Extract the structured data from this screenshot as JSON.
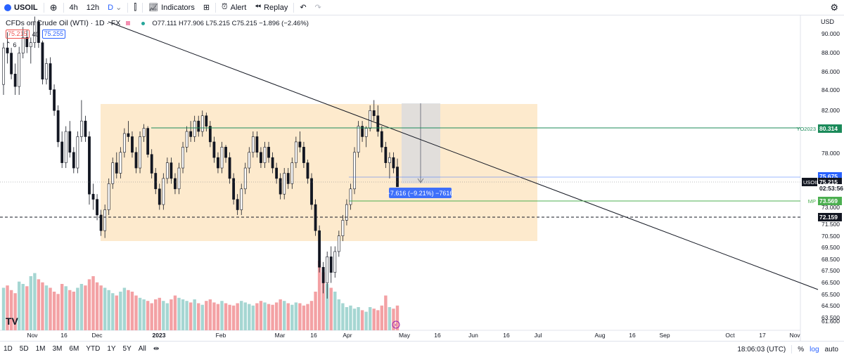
{
  "toolbar": {
    "symbol": "USOIL",
    "intervals": [
      "4h",
      "12h",
      "D"
    ],
    "indicators_label": "Indicators",
    "alert_label": "Alert",
    "replay_label": "Replay"
  },
  "legend": {
    "title": "CFDs on Crude Oil (WTI) · 1D · FX",
    "open": "O77.111",
    "high": "H77.906",
    "low": "L75.215",
    "close": "C75.215",
    "change": "−1.896 (−2.46%)",
    "bid": "75.215",
    "spread": "40",
    "ask": "75.255",
    "count": "6"
  },
  "bottombar": {
    "ranges": [
      "1D",
      "5D",
      "1M",
      "3M",
      "6M",
      "YTD",
      "1Y",
      "5Y",
      "All"
    ],
    "time": "18:06:03 (UTC)",
    "percent": "%",
    "log": "log",
    "auto": "auto"
  },
  "colors": {
    "up": "#26a69a",
    "down": "#ef5350",
    "volUp": "#a5d6d2",
    "volDown": "#f3a1a4",
    "zone": "#fde8c8",
    "accent": "#2962ff",
    "green": "#1b8a5a"
  },
  "chart_data": {
    "type": "candlestick",
    "currency": "USD",
    "y_ticks": [
      "90.000",
      "88.000",
      "86.000",
      "84.000",
      "82.000",
      "80.000",
      "78.000",
      "75.675",
      "73.000",
      "71.500",
      "70.500",
      "69.500",
      "68.500",
      "67.500",
      "66.500",
      "65.500",
      "64.500",
      "63.500",
      "61.600"
    ],
    "x_ticks": [
      "Nov",
      "16",
      "Dec",
      "2023",
      "Feb",
      "Mar",
      "16",
      "Apr",
      "May",
      "16",
      "Jun",
      "16",
      "Jul",
      "Aug",
      "16",
      "Sep",
      "Oct",
      "17",
      "Nov"
    ],
    "price_labels": [
      {
        "value": "80.314",
        "label": "YO2023",
        "color": "#1b8a5a"
      },
      {
        "value": "75.675",
        "label": "",
        "color": "#2962ff"
      },
      {
        "value": "75.215",
        "label": "USOIL",
        "color": "#131722"
      },
      {
        "value": "02:53:56",
        "label": "",
        "color": "#131722"
      },
      {
        "value": "73.569",
        "label": "MP",
        "color": "#4caf50"
      },
      {
        "value": "72.159",
        "label": "",
        "color": "#131722"
      }
    ],
    "measure_label": "−7.616 (−9.21%) −7616",
    "candles": [
      [
        85.0,
        89.0,
        84.0,
        88.5
      ],
      [
        88.5,
        90.0,
        87.0,
        88.0
      ],
      [
        88.0,
        88.5,
        85.5,
        86.0
      ],
      [
        86.0,
        87.0,
        84.0,
        84.8
      ],
      [
        84.8,
        88.6,
        84.0,
        88.0
      ],
      [
        88.0,
        90.5,
        87.5,
        89.5
      ],
      [
        89.5,
        90.2,
        88.0,
        88.6
      ],
      [
        88.6,
        89.5,
        87.0,
        89.0
      ],
      [
        89.0,
        91.5,
        88.5,
        91.0
      ],
      [
        91.0,
        91.2,
        88.5,
        89.0
      ],
      [
        89.0,
        89.2,
        85.0,
        85.5
      ],
      [
        85.5,
        87.5,
        85.0,
        87.0
      ],
      [
        87.0,
        87.6,
        84.0,
        84.5
      ],
      [
        84.5,
        85.0,
        82.0,
        82.5
      ],
      [
        82.5,
        83.0,
        79.0,
        79.5
      ],
      [
        79.5,
        80.5,
        77.0,
        77.5
      ],
      [
        77.5,
        81.0,
        77.0,
        80.5
      ],
      [
        80.5,
        81.5,
        78.0,
        78.5
      ],
      [
        78.5,
        79.0,
        76.5,
        77.0
      ],
      [
        77.0,
        80.5,
        76.5,
        80.0
      ],
      [
        80.0,
        83.5,
        79.5,
        81.5
      ],
      [
        81.5,
        82.0,
        79.5,
        80.0
      ],
      [
        80.0,
        80.5,
        73.5,
        74.5
      ],
      [
        74.5,
        75.5,
        73.0,
        74.0
      ],
      [
        74.0,
        74.5,
        72.0,
        72.5
      ],
      [
        72.5,
        73.0,
        70.5,
        71.0
      ],
      [
        71.0,
        73.5,
        70.3,
        73.0
      ],
      [
        73.0,
        76.0,
        72.5,
        75.5
      ],
      [
        75.5,
        78.0,
        75.0,
        77.5
      ],
      [
        77.5,
        78.5,
        76.0,
        76.5
      ],
      [
        76.5,
        79.0,
        76.0,
        78.5
      ],
      [
        78.5,
        80.8,
        78.0,
        80.3
      ],
      [
        80.3,
        81.5,
        79.5,
        80.0
      ],
      [
        80.0,
        80.5,
        78.0,
        78.5
      ],
      [
        78.5,
        79.0,
        76.5,
        77.0
      ],
      [
        77.0,
        80.5,
        76.5,
        80.0
      ],
      [
        80.0,
        81.2,
        79.5,
        80.8
      ],
      [
        80.8,
        81.0,
        78.0,
        78.3
      ],
      [
        78.3,
        78.8,
        76.0,
        76.5
      ],
      [
        76.5,
        77.0,
        74.5,
        75.0
      ],
      [
        75.0,
        75.5,
        73.0,
        73.5
      ],
      [
        73.5,
        76.5,
        73.0,
        76.0
      ],
      [
        76.0,
        78.0,
        75.5,
        77.5
      ],
      [
        77.5,
        78.0,
        75.5,
        76.0
      ],
      [
        76.0,
        76.5,
        74.5,
        75.0
      ],
      [
        75.0,
        77.5,
        74.5,
        77.0
      ],
      [
        77.0,
        79.5,
        76.5,
        79.0
      ],
      [
        79.0,
        81.0,
        78.5,
        80.5
      ],
      [
        80.5,
        81.5,
        79.5,
        80.0
      ],
      [
        80.0,
        82.0,
        79.5,
        81.5
      ],
      [
        81.5,
        82.0,
        80.0,
        80.5
      ],
      [
        80.5,
        82.5,
        80.0,
        82.0
      ],
      [
        82.0,
        82.3,
        80.5,
        81.0
      ],
      [
        81.0,
        81.5,
        79.0,
        79.5
      ],
      [
        79.5,
        80.0,
        77.5,
        78.0
      ],
      [
        78.0,
        78.5,
        76.5,
        77.0
      ],
      [
        77.0,
        79.5,
        76.5,
        79.0
      ],
      [
        79.0,
        79.2,
        77.5,
        78.0
      ],
      [
        78.0,
        78.5,
        75.5,
        76.0
      ],
      [
        76.0,
        76.5,
        73.5,
        74.0
      ],
      [
        74.0,
        74.5,
        72.5,
        73.0
      ],
      [
        73.0,
        75.5,
        72.5,
        75.0
      ],
      [
        75.0,
        77.5,
        74.5,
        77.0
      ],
      [
        77.0,
        79.0,
        76.5,
        78.5
      ],
      [
        78.5,
        80.5,
        78.0,
        80.0
      ],
      [
        80.0,
        80.5,
        78.0,
        78.5
      ],
      [
        78.5,
        79.0,
        77.0,
        77.5
      ],
      [
        77.5,
        79.5,
        77.0,
        79.0
      ],
      [
        79.0,
        79.5,
        77.5,
        78.0
      ],
      [
        78.0,
        78.5,
        76.5,
        77.0
      ],
      [
        77.0,
        77.5,
        75.5,
        76.0
      ],
      [
        76.0,
        76.5,
        74.0,
        74.5
      ],
      [
        74.5,
        77.0,
        74.0,
        76.5
      ],
      [
        76.5,
        77.0,
        75.0,
        75.5
      ],
      [
        75.5,
        78.0,
        75.0,
        77.5
      ],
      [
        77.5,
        80.0,
        77.0,
        79.5
      ],
      [
        79.5,
        80.5,
        78.5,
        79.0
      ],
      [
        79.0,
        79.5,
        77.0,
        77.5
      ],
      [
        77.5,
        77.8,
        75.5,
        76.0
      ],
      [
        76.0,
        76.5,
        73.0,
        73.5
      ],
      [
        73.5,
        74.0,
        70.5,
        71.0
      ],
      [
        71.0,
        71.5,
        67.0,
        67.5
      ],
      [
        67.5,
        68.0,
        65.0,
        66.0
      ],
      [
        66.0,
        69.0,
        64.5,
        68.5
      ],
      [
        68.5,
        69.5,
        66.0,
        67.0
      ],
      [
        67.0,
        69.5,
        66.5,
        69.0
      ],
      [
        69.0,
        71.0,
        68.5,
        70.5
      ],
      [
        70.5,
        72.5,
        70.0,
        72.0
      ],
      [
        72.0,
        74.0,
        71.5,
        73.5
      ],
      [
        73.5,
        75.5,
        73.0,
        75.0
      ],
      [
        75.0,
        79.0,
        74.5,
        78.5
      ],
      [
        78.5,
        81.5,
        78.0,
        81.0
      ],
      [
        81.0,
        81.5,
        79.5,
        80.0
      ],
      [
        80.0,
        81.0,
        79.0,
        80.8
      ],
      [
        80.8,
        83.0,
        80.5,
        82.5
      ],
      [
        82.5,
        83.5,
        81.5,
        82.0
      ],
      [
        82.0,
        83.0,
        80.0,
        80.5
      ],
      [
        80.5,
        81.0,
        78.5,
        79.0
      ],
      [
        79.0,
        79.5,
        77.0,
        77.5
      ],
      [
        77.5,
        78.5,
        76.0,
        78.0
      ],
      [
        78.0,
        78.5,
        76.5,
        77.0
      ],
      [
        77.1,
        77.9,
        75.2,
        75.2
      ]
    ],
    "volumes": [
      0.55,
      0.58,
      0.52,
      0.48,
      0.63,
      0.6,
      0.57,
      0.7,
      0.74,
      0.66,
      0.62,
      0.58,
      0.55,
      0.5,
      0.47,
      0.6,
      0.57,
      0.52,
      0.5,
      0.55,
      0.6,
      0.58,
      0.66,
      0.7,
      0.62,
      0.58,
      0.55,
      0.52,
      0.48,
      0.45,
      0.5,
      0.55,
      0.52,
      0.5,
      0.45,
      0.42,
      0.4,
      0.38,
      0.35,
      0.4,
      0.42,
      0.38,
      0.35,
      0.4,
      0.45,
      0.42,
      0.4,
      0.38,
      0.36,
      0.4,
      0.35,
      0.33,
      0.38,
      0.4,
      0.36,
      0.34,
      0.38,
      0.35,
      0.33,
      0.32,
      0.35,
      0.38,
      0.36,
      0.34,
      0.32,
      0.35,
      0.38,
      0.36,
      0.34,
      0.33,
      0.36,
      0.4,
      0.38,
      0.35,
      0.33,
      0.36,
      0.35,
      0.32,
      0.34,
      0.38,
      0.5,
      0.9,
      0.75,
      0.6,
      0.55,
      0.5,
      0.4,
      0.35,
      0.3,
      0.32,
      0.28,
      0.3,
      0.26,
      0.24,
      0.3,
      0.28,
      0.26,
      0.32,
      0.45,
      0.3,
      0.28,
      0.32
    ]
  }
}
